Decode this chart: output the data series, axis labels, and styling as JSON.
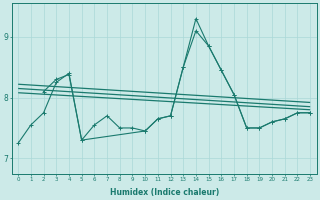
{
  "xlabel": "Humidex (Indice chaleur)",
  "bg_color": "#cceae8",
  "line_color": "#1a7a6e",
  "grid_color": "#aad8d8",
  "xlim": [
    -0.5,
    23.5
  ],
  "ylim": [
    6.75,
    9.55
  ],
  "yticks": [
    7,
    8,
    9
  ],
  "line1_x": [
    0,
    1,
    2,
    3,
    4,
    5,
    6,
    7,
    8,
    9,
    10,
    11,
    12,
    13,
    14,
    15,
    16,
    17,
    18,
    19,
    20,
    21,
    22,
    23
  ],
  "line1_y": [
    7.25,
    7.55,
    7.75,
    8.25,
    8.4,
    7.3,
    7.55,
    7.7,
    7.5,
    7.5,
    7.45,
    7.65,
    7.7,
    8.5,
    9.3,
    8.85,
    8.45,
    8.05,
    7.5,
    7.5,
    7.6,
    7.65,
    7.75,
    7.75
  ],
  "line2_x": [
    2,
    3,
    4,
    5,
    10,
    11,
    12,
    13,
    14,
    15,
    16,
    17,
    18,
    19,
    20,
    21,
    22,
    23
  ],
  "line2_y": [
    8.1,
    8.3,
    8.38,
    7.3,
    7.45,
    7.65,
    7.7,
    8.5,
    9.1,
    8.85,
    8.45,
    8.05,
    7.5,
    7.5,
    7.6,
    7.65,
    7.75,
    7.75
  ],
  "trend1_x": [
    0,
    23
  ],
  "trend1_y": [
    8.22,
    7.92
  ],
  "trend2_x": [
    0,
    23
  ],
  "trend2_y": [
    8.15,
    7.85
  ],
  "trend3_x": [
    0,
    23
  ],
  "trend3_y": [
    8.08,
    7.8
  ]
}
